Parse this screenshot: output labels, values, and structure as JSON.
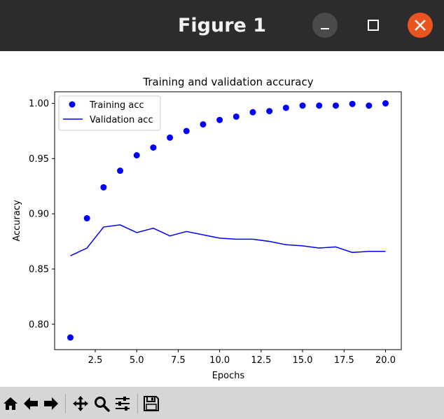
{
  "window": {
    "title": "Figure 1",
    "controls": [
      "minimize-icon",
      "maximize-icon",
      "close-icon"
    ],
    "close_color": "#e95420"
  },
  "toolbar": {
    "tools": [
      {
        "name": "home-icon"
      },
      {
        "name": "back-arrow-icon"
      },
      {
        "name": "forward-arrow-icon"
      },
      {
        "name": "pan-icon"
      },
      {
        "name": "zoom-icon"
      },
      {
        "name": "configure-subplots-icon"
      },
      {
        "name": "save-icon"
      }
    ]
  },
  "chart_data": {
    "type": "line",
    "title": "Training and validation accuracy",
    "xlabel": "Epochs",
    "ylabel": "Accuracy",
    "xlim": [
      0.05,
      20.95
    ],
    "ylim": [
      0.777,
      1.0105
    ],
    "x_ticks": [
      2.5,
      5.0,
      7.5,
      10.0,
      12.5,
      15.0,
      17.5,
      20.0
    ],
    "x_tick_labels": [
      "2.5",
      "5.0",
      "7.5",
      "10.0",
      "12.5",
      "15.0",
      "17.5",
      "20.0"
    ],
    "y_ticks": [
      0.8,
      0.85,
      0.9,
      0.95,
      1.0
    ],
    "y_tick_labels": [
      "0.80",
      "0.85",
      "0.90",
      "0.95",
      "1.00"
    ],
    "grid": false,
    "legend_position": "top-left",
    "x": [
      1,
      2,
      3,
      4,
      5,
      6,
      7,
      8,
      9,
      10,
      11,
      12,
      13,
      14,
      15,
      16,
      17,
      18,
      19,
      20
    ],
    "series": [
      {
        "name": "Training acc",
        "style": "markers",
        "color": "#0000ff",
        "values": [
          0.788,
          0.896,
          0.924,
          0.939,
          0.953,
          0.96,
          0.969,
          0.975,
          0.981,
          0.985,
          0.988,
          0.992,
          0.993,
          0.996,
          0.998,
          0.998,
          0.998,
          0.9995,
          0.998,
          1.0
        ]
      },
      {
        "name": "Validation acc",
        "style": "line",
        "color": "#0000ff",
        "values": [
          0.862,
          0.869,
          0.888,
          0.89,
          0.883,
          0.887,
          0.88,
          0.884,
          0.881,
          0.878,
          0.877,
          0.877,
          0.875,
          0.872,
          0.871,
          0.869,
          0.87,
          0.865,
          0.866,
          0.866
        ]
      }
    ]
  }
}
